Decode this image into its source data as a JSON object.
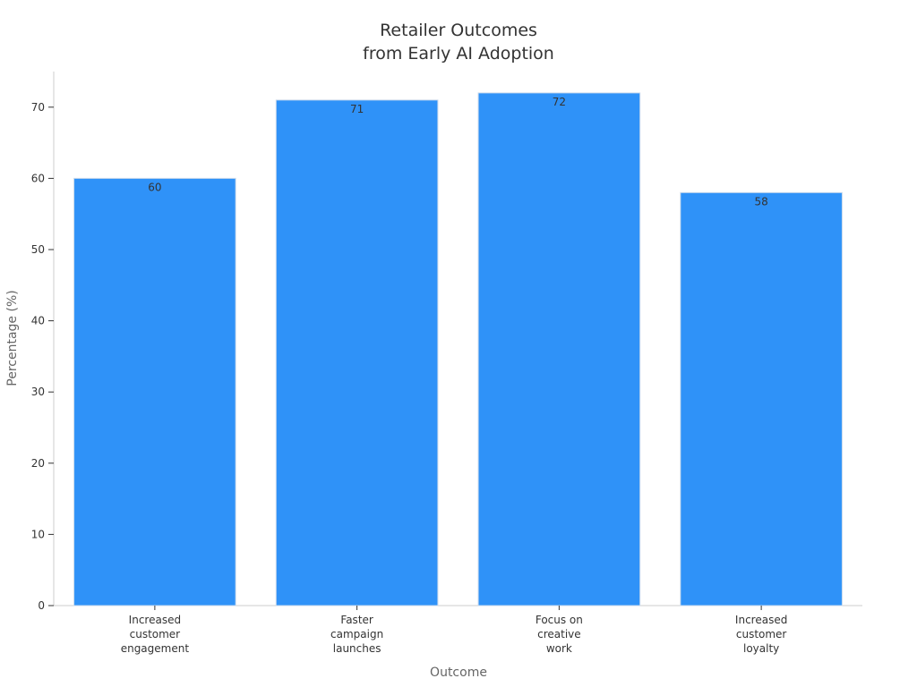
{
  "chart_data": {
    "type": "bar",
    "title": [
      "Retailer Outcomes",
      "from Early AI Adoption"
    ],
    "xlabel": "Outcome",
    "ylabel": "Percentage (%)",
    "categories": [
      [
        "Increased",
        "customer",
        "engagement"
      ],
      [
        "Faster",
        "campaign",
        "launches"
      ],
      [
        "Focus on",
        "creative",
        "work"
      ],
      [
        "Increased",
        "customer",
        "loyalty"
      ]
    ],
    "values": [
      60,
      71,
      72,
      58
    ],
    "ylim": [
      0,
      75
    ],
    "yticks": [
      0,
      10,
      20,
      30,
      40,
      50,
      60,
      70
    ],
    "grid": false,
    "bar_color": "#2F92F8",
    "bar_edge_color": "#C9D9EC",
    "axis_color": "#CCCCCC"
  }
}
